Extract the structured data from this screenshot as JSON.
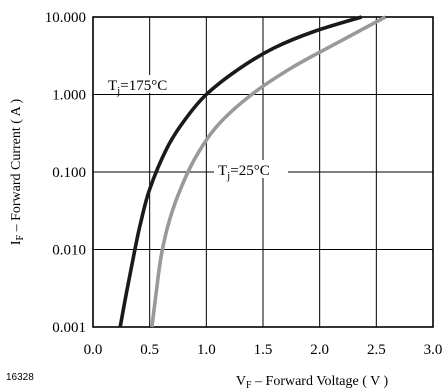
{
  "figure_number": "16328",
  "chart_data": {
    "type": "line",
    "xlabel": {
      "main": "V",
      "sub": "F",
      "rest": " – Forward Voltage ( V )"
    },
    "ylabel": {
      "main": "I",
      "sub": "F",
      "rest": " – Forward Current ( A )"
    },
    "x_ticks": [
      "0.0",
      "0.5",
      "1.0",
      "1.5",
      "2.0",
      "2.5",
      "3.0"
    ],
    "x_tick_values": [
      0.0,
      0.5,
      1.0,
      1.5,
      2.0,
      2.5,
      3.0
    ],
    "y_ticks": [
      "0.001",
      "0.010",
      "0.100",
      "1.000",
      "10.000"
    ],
    "y_tick_values": [
      0.001,
      0.01,
      0.1,
      1.0,
      10.0
    ],
    "xlim": [
      0.0,
      3.0
    ],
    "ylim": [
      0.001,
      10.0
    ],
    "y_scale": "log",
    "grid": true,
    "series": [
      {
        "label_main": "T",
        "label_sub": "j",
        "label_rest": "=175°C",
        "color": "#1a1a1a",
        "x": [
          0.24,
          0.3,
          0.37,
          0.42,
          0.5,
          0.65,
          0.8,
          1.0,
          1.3,
          1.6,
          1.95,
          2.37
        ],
        "y": [
          0.001,
          0.003,
          0.01,
          0.022,
          0.06,
          0.2,
          0.45,
          1.0,
          2.2,
          4.0,
          6.5,
          10.0
        ]
      },
      {
        "label_main": "T",
        "label_sub": "j",
        "label_rest": "=25°C",
        "color": "#999999",
        "x": [
          0.52,
          0.56,
          0.6,
          0.66,
          0.75,
          0.9,
          1.1,
          1.4,
          1.75,
          2.1,
          2.58
        ],
        "y": [
          0.001,
          0.003,
          0.008,
          0.02,
          0.05,
          0.15,
          0.4,
          1.0,
          2.2,
          4.2,
          10.0
        ]
      }
    ]
  }
}
